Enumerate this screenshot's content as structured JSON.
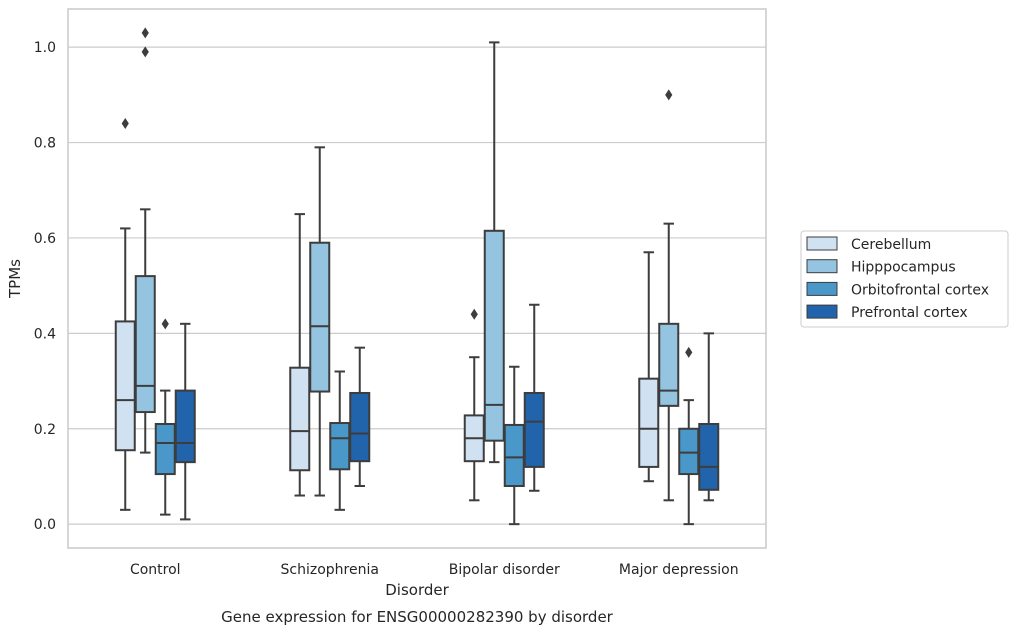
{
  "chart_data": {
    "type": "boxplot",
    "title": "Gene expression for ENSG00000282390 by disorder",
    "xlabel": "Disorder",
    "ylabel": "TPMs",
    "ylim": [
      -0.05,
      1.08
    ],
    "yticks": [
      0.0,
      0.2,
      0.4,
      0.6,
      0.8,
      1.0
    ],
    "ytick_labels": [
      "0.0",
      "0.2",
      "0.4",
      "0.6",
      "0.8",
      "1.0"
    ],
    "grid": "horizontal",
    "legend_position": "right, outside plot",
    "categories": [
      "Control",
      "Schizophrenia",
      "Bipolar disorder",
      "Major depression"
    ],
    "series": [
      {
        "name": "Cerebellum",
        "color": "#d0e1f2",
        "boxes": [
          {
            "whisker_low": 0.03,
            "q1": 0.155,
            "median": 0.26,
            "q3": 0.425,
            "whisker_high": 0.62,
            "outliers": [
              0.84
            ]
          },
          {
            "whisker_low": 0.06,
            "q1": 0.113,
            "median": 0.195,
            "q3": 0.328,
            "whisker_high": 0.65,
            "outliers": []
          },
          {
            "whisker_low": 0.05,
            "q1": 0.132,
            "median": 0.18,
            "q3": 0.228,
            "whisker_high": 0.35,
            "outliers": [
              0.44
            ]
          },
          {
            "whisker_low": 0.09,
            "q1": 0.12,
            "median": 0.2,
            "q3": 0.305,
            "whisker_high": 0.57,
            "outliers": []
          }
        ]
      },
      {
        "name": "Hipppocampus",
        "color": "#94c4df",
        "boxes": [
          {
            "whisker_low": 0.15,
            "q1": 0.235,
            "median": 0.29,
            "q3": 0.52,
            "whisker_high": 0.66,
            "outliers": [
              0.99,
              1.03
            ]
          },
          {
            "whisker_low": 0.06,
            "q1": 0.278,
            "median": 0.415,
            "q3": 0.59,
            "whisker_high": 0.79,
            "outliers": []
          },
          {
            "whisker_low": 0.13,
            "q1": 0.175,
            "median": 0.25,
            "q3": 0.615,
            "whisker_high": 1.01,
            "outliers": []
          },
          {
            "whisker_low": 0.05,
            "q1": 0.248,
            "median": 0.28,
            "q3": 0.42,
            "whisker_high": 0.63,
            "outliers": [
              0.9
            ]
          }
        ]
      },
      {
        "name": "Orbitofrontal cortex",
        "color": "#4a98c9",
        "boxes": [
          {
            "whisker_low": 0.02,
            "q1": 0.105,
            "median": 0.17,
            "q3": 0.21,
            "whisker_high": 0.28,
            "outliers": [
              0.42
            ]
          },
          {
            "whisker_low": 0.03,
            "q1": 0.115,
            "median": 0.18,
            "q3": 0.212,
            "whisker_high": 0.32,
            "outliers": []
          },
          {
            "whisker_low": 0.0,
            "q1": 0.08,
            "median": 0.14,
            "q3": 0.208,
            "whisker_high": 0.33,
            "outliers": []
          },
          {
            "whisker_low": 0.0,
            "q1": 0.105,
            "median": 0.15,
            "q3": 0.2,
            "whisker_high": 0.26,
            "outliers": [
              0.36
            ]
          }
        ]
      },
      {
        "name": "Prefrontal cortex",
        "color": "#2164ab",
        "boxes": [
          {
            "whisker_low": 0.01,
            "q1": 0.13,
            "median": 0.17,
            "q3": 0.28,
            "whisker_high": 0.42,
            "outliers": []
          },
          {
            "whisker_low": 0.08,
            "q1": 0.132,
            "median": 0.19,
            "q3": 0.275,
            "whisker_high": 0.37,
            "outliers": []
          },
          {
            "whisker_low": 0.07,
            "q1": 0.12,
            "median": 0.215,
            "q3": 0.275,
            "whisker_high": 0.46,
            "outliers": []
          },
          {
            "whisker_low": 0.05,
            "q1": 0.072,
            "median": 0.12,
            "q3": 0.21,
            "whisker_high": 0.4,
            "outliers": []
          }
        ]
      }
    ]
  }
}
